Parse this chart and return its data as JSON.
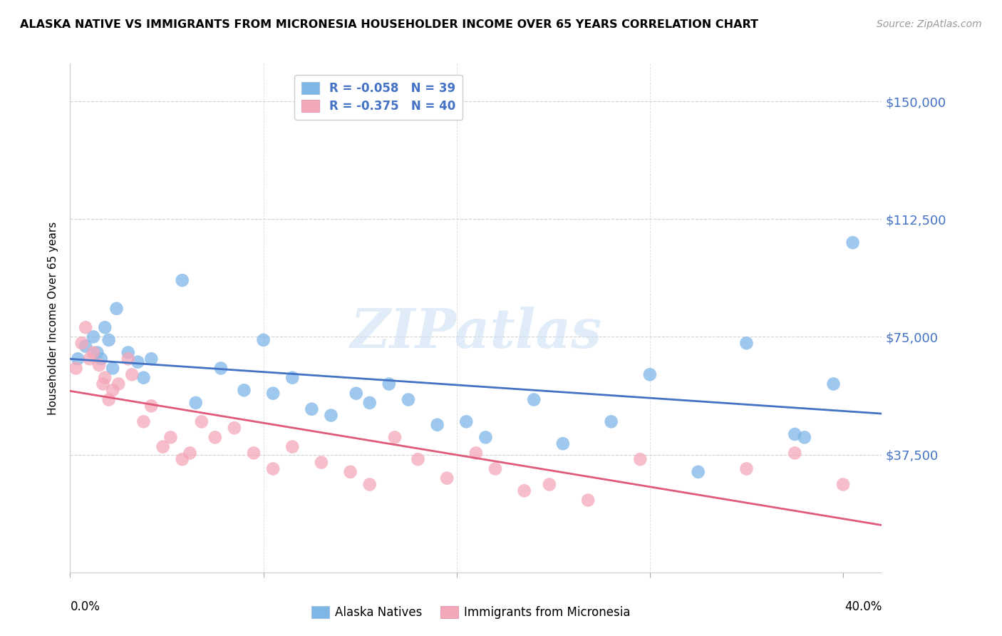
{
  "title": "ALASKA NATIVE VS IMMIGRANTS FROM MICRONESIA HOUSEHOLDER INCOME OVER 65 YEARS CORRELATION CHART",
  "source": "Source: ZipAtlas.com",
  "ylabel": "Householder Income Over 65 years",
  "ytick_labels": [
    "$37,500",
    "$75,000",
    "$112,500",
    "$150,000"
  ],
  "ytick_values": [
    37500,
    75000,
    112500,
    150000
  ],
  "ymin": 0,
  "ymax": 162000,
  "xmin": 0.0,
  "xmax": 0.42,
  "legend_r_blue": "R = -0.058",
  "legend_n_blue": "N = 39",
  "legend_r_pink": "R = -0.375",
  "legend_n_pink": "N = 40",
  "legend_label_blue": "Alaska Natives",
  "legend_label_pink": "Immigrants from Micronesia",
  "color_blue": "#7EB6E8",
  "color_pink": "#F4A7B9",
  "line_color_blue": "#4472C4",
  "line_color_pink": "#E05A7A",
  "blue_x": [
    0.004,
    0.008,
    0.012,
    0.014,
    0.016,
    0.018,
    0.02,
    0.022,
    0.024,
    0.03,
    0.035,
    0.038,
    0.042,
    0.058,
    0.065,
    0.078,
    0.09,
    0.1,
    0.105,
    0.115,
    0.125,
    0.135,
    0.148,
    0.155,
    0.165,
    0.175,
    0.19,
    0.205,
    0.215,
    0.24,
    0.255,
    0.28,
    0.3,
    0.325,
    0.35,
    0.375,
    0.38,
    0.395,
    0.405
  ],
  "blue_y": [
    68000,
    72000,
    75000,
    70000,
    68000,
    78000,
    74000,
    65000,
    84000,
    70000,
    67000,
    62000,
    68000,
    93000,
    54000,
    65000,
    58000,
    74000,
    57000,
    62000,
    52000,
    50000,
    57000,
    54000,
    60000,
    55000,
    47000,
    48000,
    43000,
    55000,
    41000,
    48000,
    63000,
    32000,
    73000,
    44000,
    43000,
    60000,
    105000
  ],
  "pink_x": [
    0.003,
    0.006,
    0.008,
    0.01,
    0.012,
    0.015,
    0.017,
    0.018,
    0.02,
    0.022,
    0.025,
    0.03,
    0.032,
    0.038,
    0.042,
    0.048,
    0.052,
    0.058,
    0.062,
    0.068,
    0.075,
    0.085,
    0.095,
    0.105,
    0.115,
    0.13,
    0.145,
    0.155,
    0.168,
    0.18,
    0.195,
    0.21,
    0.22,
    0.235,
    0.248,
    0.268,
    0.295,
    0.35,
    0.375,
    0.4
  ],
  "pink_y": [
    65000,
    73000,
    78000,
    68000,
    70000,
    66000,
    60000,
    62000,
    55000,
    58000,
    60000,
    68000,
    63000,
    48000,
    53000,
    40000,
    43000,
    36000,
    38000,
    48000,
    43000,
    46000,
    38000,
    33000,
    40000,
    35000,
    32000,
    28000,
    43000,
    36000,
    30000,
    38000,
    33000,
    26000,
    28000,
    23000,
    36000,
    33000,
    38000,
    28000
  ]
}
